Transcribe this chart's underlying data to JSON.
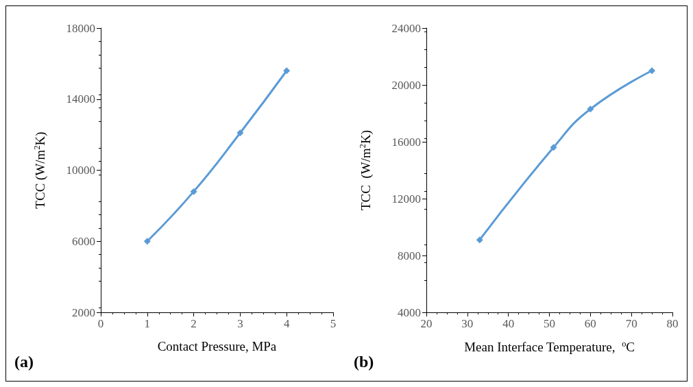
{
  "chart_data": [
    {
      "type": "line",
      "xlabel": "Contact Pressure, MPa",
      "ylabel": "TCC (W/m$^{2}$K)",
      "annotations": [
        "(a)"
      ],
      "marker": "diamond",
      "x": [
        1,
        2,
        3,
        4
      ],
      "series": [
        {
          "color": "#5b9bd5",
          "values": [
            6000,
            8800,
            12100,
            15600
          ]
        }
      ],
      "xlim": [
        0,
        5
      ],
      "xticks": [
        0,
        1,
        2,
        3,
        4,
        5
      ],
      "ylim": [
        2000,
        18000
      ],
      "yticks": [
        2000,
        6000,
        10000,
        14000,
        18000
      ]
    },
    {
      "type": "line",
      "xlabel": "Mean Interface Temperature,  $^{o}$C",
      "ylabel": "TCC  (W/m$^{2}$K)",
      "annotations": [
        "(b)"
      ],
      "marker": "diamond",
      "x": [
        33,
        51,
        60,
        75
      ],
      "series": [
        {
          "color": "#5b9bd5",
          "values": [
            9100,
            15600,
            18300,
            21000
          ]
        }
      ],
      "xlim": [
        20,
        80
      ],
      "xticks": [
        20,
        30,
        40,
        50,
        60,
        70,
        80
      ],
      "ylim": [
        4000,
        24000
      ],
      "yticks": [
        4000,
        8000,
        12000,
        16000,
        20000,
        24000
      ]
    }
  ]
}
